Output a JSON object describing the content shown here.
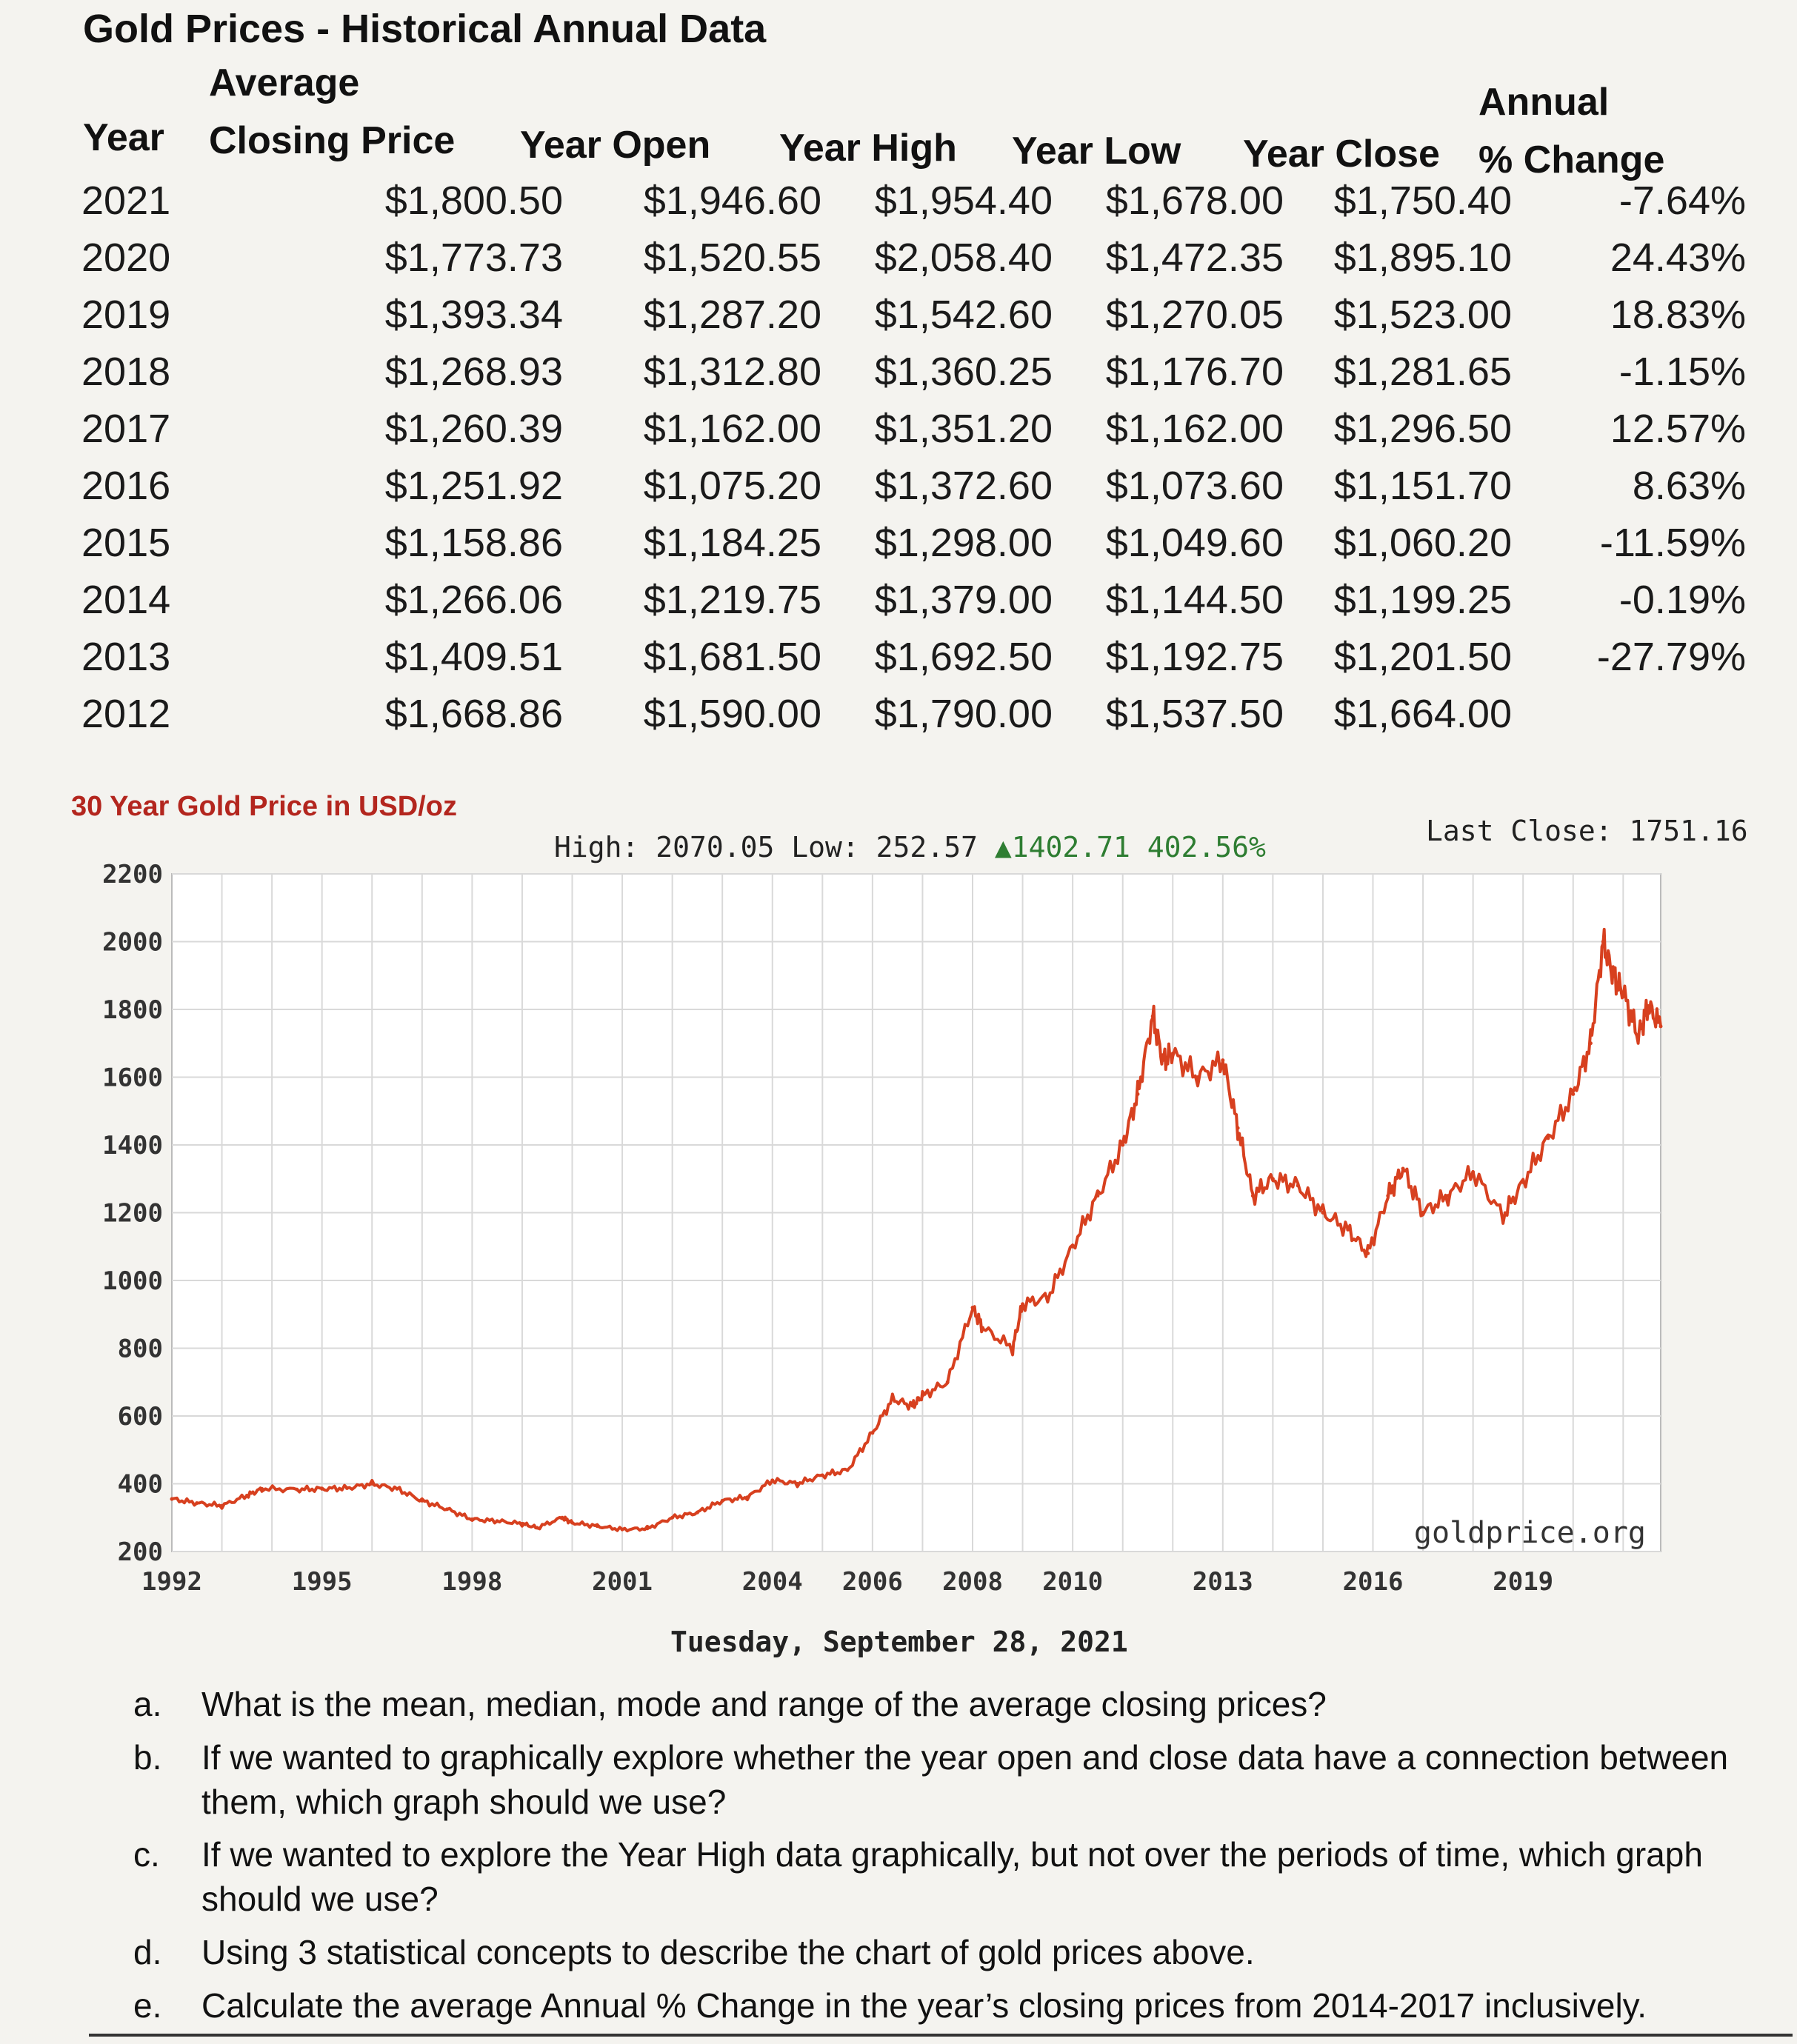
{
  "title": "Gold Prices - Historical Annual Data",
  "table": {
    "headers": {
      "year": "Year",
      "avg_line1": "Average",
      "avg_line2": "Closing Price",
      "open": "Year Open",
      "high": "Year High",
      "low": "Year Low",
      "close": "Year Close",
      "change_line1": "Annual",
      "change_line2": "% Change"
    },
    "rows": [
      {
        "year": "2021",
        "avg": "$1,800.50",
        "open": "$1,946.60",
        "high": "$1,954.40",
        "low": "$1,678.00",
        "close": "$1,750.40",
        "change": "-7.64%"
      },
      {
        "year": "2020",
        "avg": "$1,773.73",
        "open": "$1,520.55",
        "high": "$2,058.40",
        "low": "$1,472.35",
        "close": "$1,895.10",
        "change": "24.43%"
      },
      {
        "year": "2019",
        "avg": "$1,393.34",
        "open": "$1,287.20",
        "high": "$1,542.60",
        "low": "$1,270.05",
        "close": "$1,523.00",
        "change": "18.83%"
      },
      {
        "year": "2018",
        "avg": "$1,268.93",
        "open": "$1,312.80",
        "high": "$1,360.25",
        "low": "$1,176.70",
        "close": "$1,281.65",
        "change": "-1.15%"
      },
      {
        "year": "2017",
        "avg": "$1,260.39",
        "open": "$1,162.00",
        "high": "$1,351.20",
        "low": "$1,162.00",
        "close": "$1,296.50",
        "change": "12.57%"
      },
      {
        "year": "2016",
        "avg": "$1,251.92",
        "open": "$1,075.20",
        "high": "$1,372.60",
        "low": "$1,073.60",
        "close": "$1,151.70",
        "change": "8.63%"
      },
      {
        "year": "2015",
        "avg": "$1,158.86",
        "open": "$1,184.25",
        "high": "$1,298.00",
        "low": "$1,049.60",
        "close": "$1,060.20",
        "change": "-11.59%"
      },
      {
        "year": "2014",
        "avg": "$1,266.06",
        "open": "$1,219.75",
        "high": "$1,379.00",
        "low": "$1,144.50",
        "close": "$1,199.25",
        "change": "-0.19%"
      },
      {
        "year": "2013",
        "avg": "$1,409.51",
        "open": "$1,681.50",
        "high": "$1,692.50",
        "low": "$1,192.75",
        "close": "$1,201.50",
        "change": "-27.79%"
      },
      {
        "year": "2012",
        "avg": "$1,668.86",
        "open": "$1,590.00",
        "high": "$1,790.00",
        "low": "$1,537.50",
        "close": "$1,664.00",
        "change": ""
      }
    ]
  },
  "chart_labels": {
    "title": "30 Year Gold Price in USD/oz",
    "stats_prefix": "High: 2070.05 Low: 252.57",
    "stats_change": "▲1402.71 402.56%",
    "last_close": "Last Close: 1751.16",
    "watermark": "goldprice.org",
    "date": "Tuesday, September 28, 2021"
  },
  "colors": {
    "line": "#d7401f",
    "positive": "#2e7d32",
    "negative": "#b3261e",
    "grid": "#d9d9d9"
  },
  "chart_data": {
    "type": "line",
    "title": "30 Year Gold Price in USD/oz",
    "xlabel": "",
    "ylabel": "USD/oz",
    "xlim": [
      1992,
      2021.75
    ],
    "ylim": [
      200,
      2200
    ],
    "y_ticks": [
      200,
      400,
      600,
      800,
      1000,
      1200,
      1400,
      1600,
      1800,
      2000,
      2200
    ],
    "x_ticks": [
      1992,
      1995,
      1998,
      2001,
      2004,
      2006,
      2008,
      2010,
      2013,
      2016,
      2019
    ],
    "grid": true,
    "series": [
      {
        "name": "Gold price",
        "x": [
          1992,
          1992.5,
          1993,
          1993.5,
          1993.8,
          1994.5,
          1995,
          1995.5,
          1996,
          1996.5,
          1997,
          1997.5,
          1998,
          1998.5,
          1999,
          1999.3,
          1999.8,
          2000,
          2000.5,
          2001,
          2001.5,
          2002,
          2002.5,
          2003,
          2003.5,
          2004,
          2004.5,
          2005,
          2005.5,
          2006,
          2006.4,
          2006.8,
          2007,
          2007.5,
          2008,
          2008.2,
          2008.8,
          2009,
          2009.5,
          2010,
          2010.5,
          2011,
          2011.3,
          2011.6,
          2011.8,
          2012,
          2012.5,
          2013,
          2013.3,
          2013.6,
          2014,
          2014.5,
          2015,
          2015.5,
          2015.9,
          2016.3,
          2016.6,
          2017,
          2017.5,
          2018,
          2018.6,
          2019,
          2019.5,
          2020,
          2020.35,
          2020.6,
          2020.8,
          2021,
          2021.3,
          2021.5,
          2021.75
        ],
        "values": [
          355,
          343,
          335,
          365,
          385,
          383,
          385,
          387,
          400,
          385,
          350,
          325,
          295,
          290,
          282,
          270,
          300,
          285,
          275,
          265,
          268,
          300,
          315,
          350,
          360,
          410,
          400,
          425,
          440,
          550,
          650,
          630,
          660,
          700,
          920,
          860,
          800,
          930,
          950,
          1100,
          1250,
          1400,
          1550,
          1780,
          1650,
          1670,
          1600,
          1650,
          1450,
          1250,
          1300,
          1280,
          1200,
          1150,
          1080,
          1250,
          1330,
          1200,
          1250,
          1320,
          1190,
          1290,
          1420,
          1550,
          1700,
          2000,
          1900,
          1850,
          1720,
          1810,
          1750
        ]
      }
    ]
  },
  "questions": [
    {
      "label": "a.",
      "text": "What is the mean, median, mode and range of the average closing prices?"
    },
    {
      "label": "b.",
      "text": "If we wanted to graphically explore whether the year open and close data have a connection between them, which graph should we use?"
    },
    {
      "label": "c.",
      "text": "If we wanted to explore the Year High data graphically, but not over the periods of time, which graph should we use?"
    },
    {
      "label": "d.",
      "text": "Using 3 statistical concepts to describe the chart of gold prices above."
    },
    {
      "label": "e.",
      "text": "Calculate the average Annual % Change in the year’s closing prices from 2014-2017 inclusively."
    }
  ]
}
